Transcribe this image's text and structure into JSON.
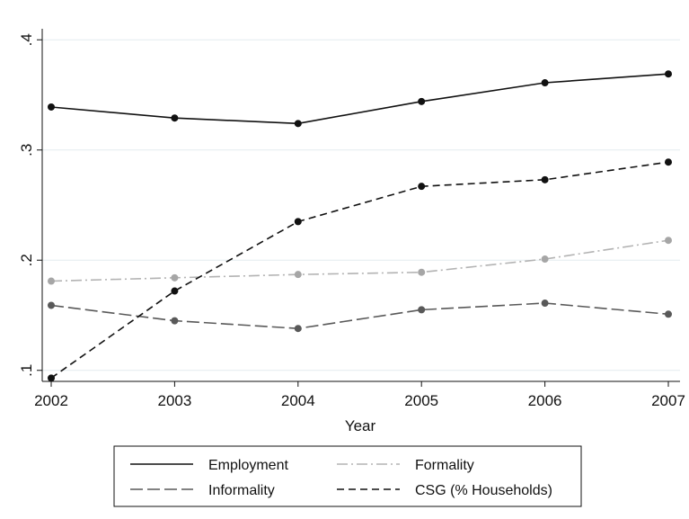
{
  "chart_data": {
    "type": "line",
    "title": "",
    "xlabel": "Year",
    "ylabel": "",
    "x": [
      2002,
      2003,
      2004,
      2005,
      2006,
      2007
    ],
    "xticks": [
      "2002",
      "2003",
      "2004",
      "2005",
      "2006",
      "2007"
    ],
    "yticks": [
      ".1",
      ".2",
      ".3",
      ".4"
    ],
    "ytick_values": [
      0.1,
      0.2,
      0.3,
      0.4
    ],
    "xlim": [
      2002,
      2007
    ],
    "ylim": [
      0.09,
      0.41
    ],
    "grid": "horizontal",
    "legend_position": "bottom",
    "series": [
      {
        "name": "Employment",
        "color": "#111111",
        "dash": "solid",
        "marker_color": "#111111",
        "values": [
          0.339,
          0.329,
          0.324,
          0.344,
          0.361,
          0.369
        ]
      },
      {
        "name": "Formality",
        "color": "#b3b3b3",
        "dash": "dashdot",
        "marker_color": "#a6a6a6",
        "values": [
          0.181,
          0.184,
          0.187,
          0.189,
          0.201,
          0.218
        ]
      },
      {
        "name": "Informality",
        "color": "#595959",
        "dash": "longdash",
        "marker_color": "#595959",
        "values": [
          0.159,
          0.145,
          0.138,
          0.155,
          0.161,
          0.151
        ]
      },
      {
        "name": "CSG (% Households)",
        "color": "#111111",
        "dash": "dash",
        "marker_color": "#111111",
        "values": [
          0.093,
          0.172,
          0.235,
          0.267,
          0.273,
          0.289
        ]
      }
    ]
  }
}
